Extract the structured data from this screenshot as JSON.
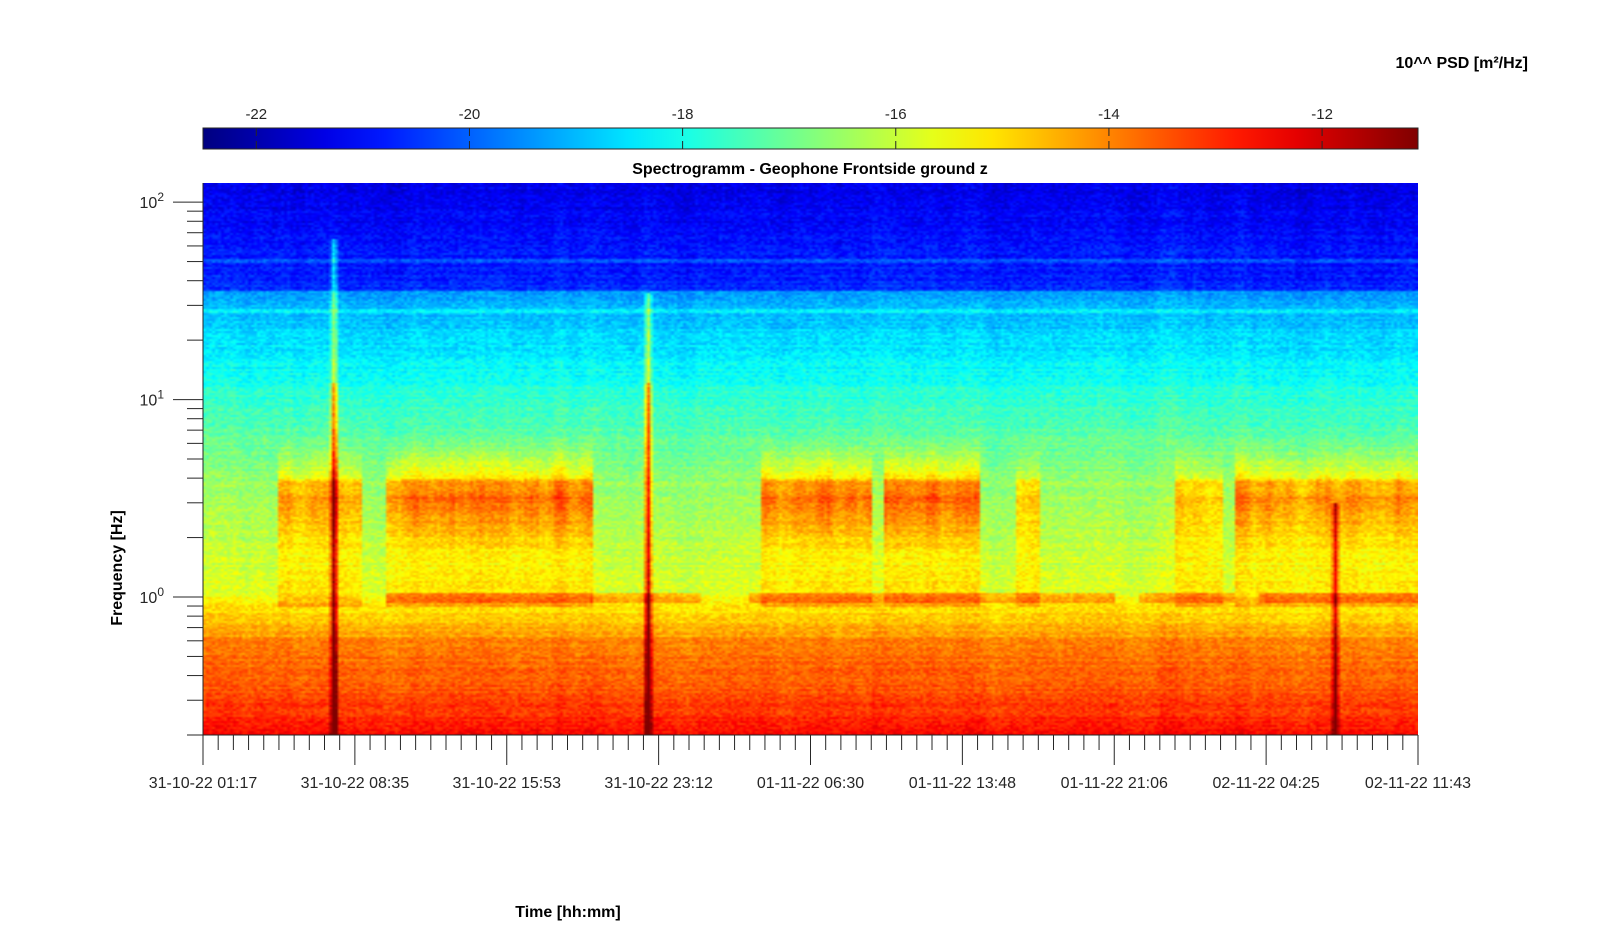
{
  "chart_data": {
    "type": "heatmap",
    "title": "Spectrogramm - Geophone Frontside ground z",
    "xlabel": "Time [hh:mm]",
    "ylabel": "Frequency [Hz]",
    "y_scale": "log",
    "ylim": [
      0.2,
      125
    ],
    "x_tick_labels": [
      "31-10-22 01:17",
      "31-10-22 08:35",
      "31-10-22 15:53",
      "31-10-22 23:12",
      "01-11-22 06:30",
      "01-11-22 13:48",
      "01-11-22 21:06",
      "02-11-22 04:25",
      "02-11-22 11:43"
    ],
    "y_ticks": [
      {
        "base": "10",
        "exp": "2",
        "value": 100
      },
      {
        "base": "10",
        "exp": "1",
        "value": 10
      },
      {
        "base": "10",
        "exp": "0",
        "value": 1
      }
    ],
    "colorbar": {
      "label": "10^^ PSD [m²/Hz]",
      "location": "top",
      "range": [
        -22.5,
        -11.1
      ],
      "ticks": [
        "-22",
        "-20",
        "-18",
        "-16",
        "-14",
        "-12"
      ],
      "tick_values": [
        -22,
        -20,
        -18,
        -16,
        -14,
        -12
      ],
      "colormap": "jet"
    },
    "features": [
      {
        "kind": "transient",
        "time_fraction": 0.107,
        "max_freq_hz": 65
      },
      {
        "kind": "transient",
        "time_fraction": 0.366,
        "max_freq_hz": 35
      },
      {
        "kind": "transient",
        "time_fraction": 0.933,
        "max_freq_hz": 3
      }
    ]
  }
}
